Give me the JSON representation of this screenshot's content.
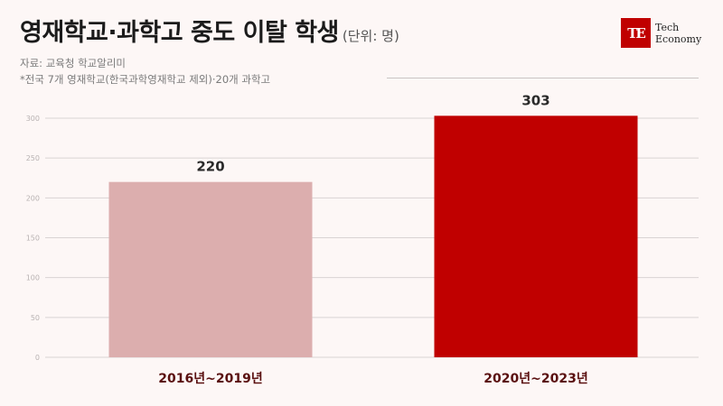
{
  "header": {
    "title": "영재학교·과학고 중도 이탈 학생",
    "unit": "(단위: 명)",
    "source": "자료: 교육청 학교알리미",
    "note": "*전국 7개 영재학교(한국과학영재학교 제외)·20개 과학고"
  },
  "logo": {
    "mark": "TE",
    "line1": "Tech",
    "line2": "Economy"
  },
  "colors": {
    "background": "#fdf7f6",
    "bar_light": "#dcaeae",
    "bar_dark": "#c00000",
    "brand": "#c00000"
  },
  "chart_data": {
    "type": "bar",
    "categories": [
      "2016년~2019년",
      "2020년~2023년"
    ],
    "values": [
      220,
      303
    ],
    "value_labels": [
      "220",
      "303"
    ],
    "bar_colors": [
      "#dcaeae",
      "#c00000"
    ],
    "ylim": [
      0,
      300
    ],
    "yticks": [
      0,
      50,
      100,
      150,
      200,
      250,
      300
    ],
    "grid": true
  }
}
